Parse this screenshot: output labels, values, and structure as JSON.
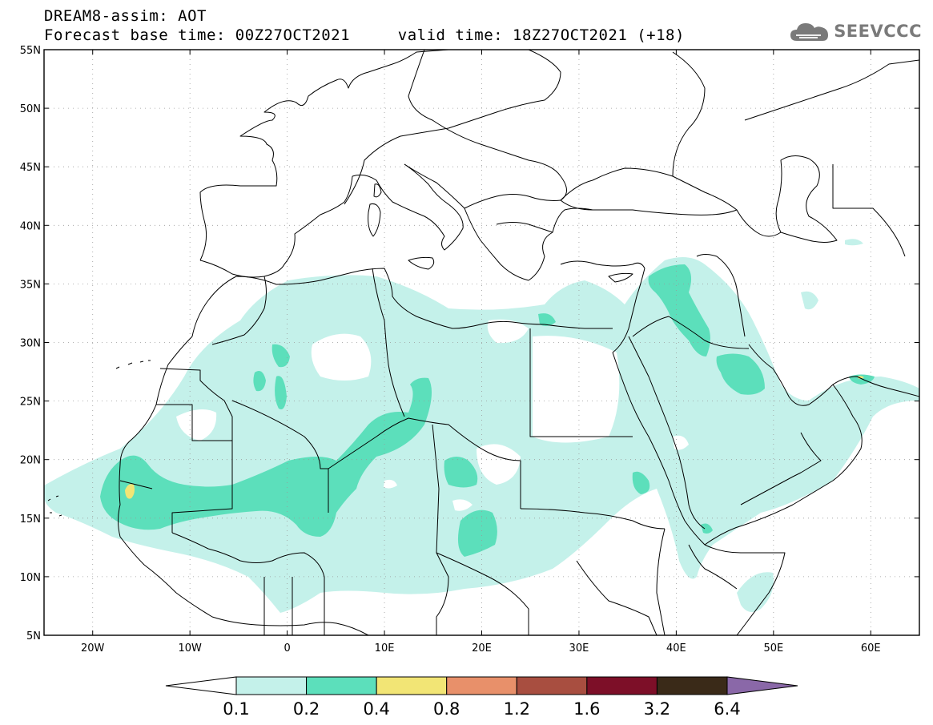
{
  "header": {
    "title_line1": "DREAM8-assim: AOT",
    "forecast_base": "Forecast base time: 00Z27OCT2021",
    "valid_time": "valid time: 18Z27OCT2021 (+18)"
  },
  "logo": {
    "text": "SEEVCCC",
    "icon": "cloud-icon"
  },
  "map": {
    "lon_range": [
      -25,
      65
    ],
    "lat_range": [
      5,
      55
    ],
    "lat_ticks": [
      {
        "v": 55,
        "label": "55N"
      },
      {
        "v": 50,
        "label": "50N"
      },
      {
        "v": 45,
        "label": "45N"
      },
      {
        "v": 40,
        "label": "40N"
      },
      {
        "v": 35,
        "label": "35N"
      },
      {
        "v": 30,
        "label": "30N"
      },
      {
        "v": 25,
        "label": "25N"
      },
      {
        "v": 20,
        "label": "20N"
      },
      {
        "v": 15,
        "label": "15N"
      },
      {
        "v": 10,
        "label": "10N"
      },
      {
        "v": 5,
        "label": "5N"
      }
    ],
    "lon_ticks": [
      {
        "v": -20,
        "label": "20W"
      },
      {
        "v": -10,
        "label": "10W"
      },
      {
        "v": 0,
        "label": "0"
      },
      {
        "v": 10,
        "label": "10E"
      },
      {
        "v": 20,
        "label": "20E"
      },
      {
        "v": 30,
        "label": "30E"
      },
      {
        "v": 40,
        "label": "40E"
      },
      {
        "v": 50,
        "label": "50E"
      },
      {
        "v": 60,
        "label": "60E"
      }
    ],
    "gridlines": "dotted"
  },
  "colorbar": {
    "labels": [
      "0.1",
      "0.2",
      "0.4",
      "0.8",
      "1.2",
      "1.6",
      "3.2",
      "6.4"
    ],
    "colors": [
      "#ffffff",
      "#c4f1ea",
      "#5cdfbb",
      "#f2e575",
      "#e8906a",
      "#a84e40",
      "#7d0f28",
      "#3a2a18",
      "#8a68a8"
    ]
  }
}
